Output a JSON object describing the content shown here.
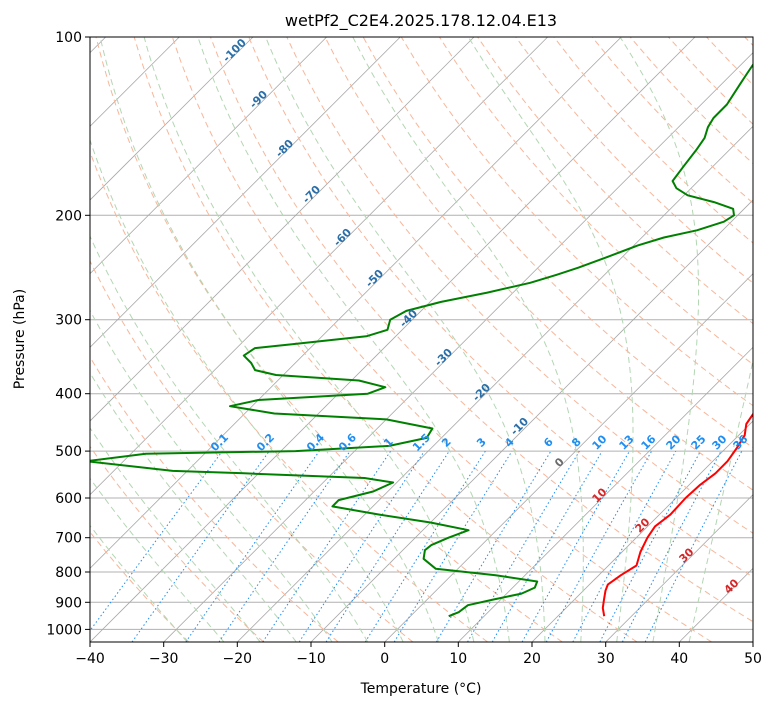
{
  "chart_data": {
    "type": "line",
    "title": "wetPf2_C2E4.2025.178.12.04.E13",
    "xlabel": "Temperature (°C)",
    "ylabel": "Pressure (hPa)",
    "xlim": [
      -40,
      50
    ],
    "ylim": [
      1050,
      100
    ],
    "y_scale": "log",
    "skew": "skew-T",
    "grid": true,
    "x_ticks": [
      "−40",
      "−30",
      "−20",
      "−10",
      "0",
      "10",
      "20",
      "30",
      "40",
      "50"
    ],
    "x_tick_values": [
      -40,
      -30,
      -20,
      -10,
      0,
      10,
      20,
      30,
      40,
      50
    ],
    "y_ticks": [
      "100",
      "200",
      "300",
      "400",
      "500",
      "600",
      "700",
      "800",
      "900",
      "1000"
    ],
    "y_tick_values": [
      100,
      200,
      300,
      400,
      500,
      600,
      700,
      800,
      900,
      1000
    ],
    "series": [
      {
        "color": "#ff0000",
        "points": [
          [
            26.3,
            950
          ],
          [
            25.0,
            920
          ],
          [
            24.0,
            890
          ],
          [
            23.0,
            860
          ],
          [
            22.5,
            840
          ],
          [
            23.0,
            810
          ],
          [
            23.8,
            780
          ],
          [
            22.5,
            740
          ],
          [
            21.5,
            700
          ],
          [
            21.0,
            670
          ],
          [
            21.5,
            640
          ],
          [
            21.3,
            600
          ],
          [
            21.5,
            570
          ],
          [
            22.0,
            545
          ],
          [
            22.0,
            520
          ],
          [
            21.5,
            495
          ],
          [
            20.8,
            470
          ],
          [
            19.5,
            450
          ],
          [
            19.0,
            430
          ],
          [
            19.0,
            410
          ],
          [
            18.8,
            390
          ],
          [
            18.5,
            365
          ],
          [
            17.5,
            350
          ],
          [
            15.5,
            330
          ],
          [
            13.5,
            310
          ],
          [
            11.5,
            290
          ],
          [
            9.5,
            270
          ],
          [
            7.0,
            250
          ],
          [
            5.0,
            235
          ],
          [
            3.0,
            220
          ],
          [
            2.0,
            210
          ],
          [
            1.0,
            198
          ],
          [
            0.0,
            186
          ],
          [
            -1.0,
            175
          ],
          [
            -2.0,
            163
          ],
          [
            -3.5,
            150
          ],
          [
            -5.2,
            140
          ],
          [
            -6.2,
            133
          ],
          [
            -7.5,
            125
          ],
          [
            -8.2,
            120
          ],
          [
            -9.0,
            115
          ]
        ]
      },
      {
        "color": "#008000",
        "points": [
          [
            5.2,
            950
          ],
          [
            6.0,
            935
          ],
          [
            6.3,
            910
          ],
          [
            9.0,
            890
          ],
          [
            12.0,
            870
          ],
          [
            13.0,
            850
          ],
          [
            12.5,
            830
          ],
          [
            6.0,
            810
          ],
          [
            -3.0,
            790
          ],
          [
            -6.0,
            760
          ],
          [
            -7.0,
            735
          ],
          [
            -6.8,
            720
          ],
          [
            -5.5,
            700
          ],
          [
            -3.8,
            680
          ],
          [
            -10.0,
            660
          ],
          [
            -18.0,
            640
          ],
          [
            -25.5,
            620
          ],
          [
            -25.5,
            605
          ],
          [
            -22.0,
            585
          ],
          [
            -20.5,
            565
          ],
          [
            -25.0,
            555
          ],
          [
            -42.0,
            545
          ],
          [
            -52.0,
            540
          ],
          [
            -65.0,
            520
          ],
          [
            -58.0,
            505
          ],
          [
            -38.0,
            500
          ],
          [
            -26.0,
            490
          ],
          [
            -22.0,
            475
          ],
          [
            -22.5,
            458
          ],
          [
            -30.0,
            442
          ],
          [
            -46.0,
            432
          ],
          [
            -53.0,
            420
          ],
          [
            -50.0,
            410
          ],
          [
            -36.0,
            400
          ],
          [
            -34.5,
            390
          ],
          [
            -39.0,
            380
          ],
          [
            -51.0,
            372
          ],
          [
            -54.5,
            365
          ],
          [
            -56.0,
            355
          ],
          [
            -58.0,
            345
          ],
          [
            -57.5,
            335
          ],
          [
            -53.0,
            330
          ],
          [
            -44.0,
            320
          ],
          [
            -42.0,
            312
          ],
          [
            -43.0,
            300
          ],
          [
            -42.0,
            290
          ],
          [
            -38.5,
            280
          ],
          [
            -33.5,
            270
          ],
          [
            -29.0,
            260
          ],
          [
            -26.5,
            252
          ],
          [
            -24.5,
            245
          ],
          [
            -22.0,
            235
          ],
          [
            -19.5,
            225
          ],
          [
            -17.0,
            218
          ],
          [
            -13.5,
            212
          ],
          [
            -11.0,
            205
          ],
          [
            -10.5,
            200
          ],
          [
            -11.5,
            195
          ],
          [
            -15.0,
            190
          ],
          [
            -19.5,
            185
          ],
          [
            -22.0,
            180
          ],
          [
            -23.5,
            175
          ],
          [
            -24.0,
            165
          ],
          [
            -24.5,
            155
          ],
          [
            -25.0,
            148
          ],
          [
            -26.0,
            142
          ],
          [
            -26.5,
            137
          ],
          [
            -26.5,
            130
          ],
          [
            -27.0,
            125
          ],
          [
            -27.5,
            120
          ],
          [
            -28.0,
            115
          ],
          [
            -28.5,
            110
          ],
          [
            -28.5,
            106
          ],
          [
            -27.5,
            103
          ],
          [
            -25.5,
            101
          ],
          [
            -23.5,
            100
          ]
        ]
      }
    ],
    "dry_adiabat_labels": [
      "-100",
      "-90",
      "-80",
      "-70",
      "-60",
      "-50",
      "-40",
      "-30",
      "-20",
      "-10"
    ],
    "mixing_ratio_labels": [
      "0.1",
      "0.2",
      "0.4",
      "0.6",
      "1",
      "1.5",
      "2",
      "3",
      "4",
      "6",
      "8",
      "10",
      "13",
      "16",
      "20",
      "25",
      "30",
      "36"
    ],
    "moist_adiabat_labels": [
      "0",
      "10",
      "20",
      "30",
      "40"
    ],
    "colors": {
      "temperature": "#ff0000",
      "dewpoint": "#008000",
      "isotherm": "#a8a8a8",
      "dry_adiabat": "#f7b69a",
      "moist_adiabat": "#b3d6b3",
      "mixing_ratio": "#1f8ef1",
      "dry_label": "#2b6fa8",
      "moist_label": "#d62728"
    }
  }
}
